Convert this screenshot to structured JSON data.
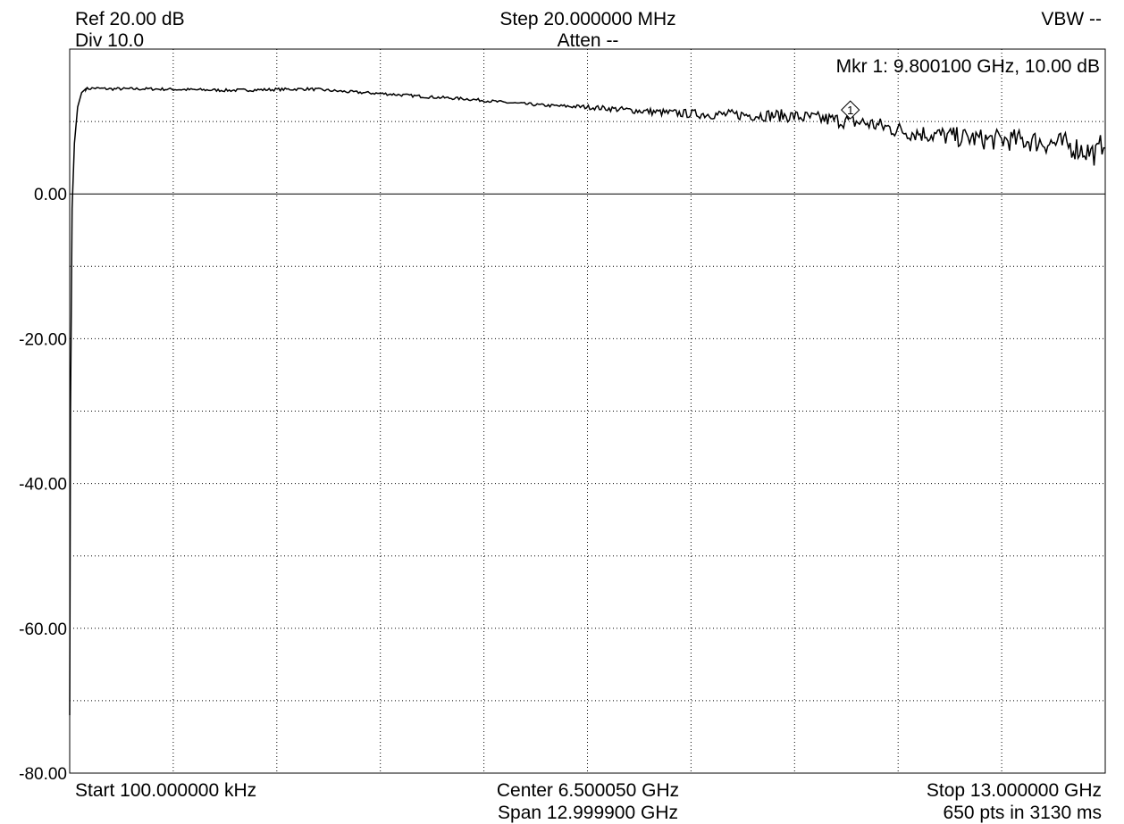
{
  "header": {
    "ref": "Ref 20.00 dB",
    "div": "Div 10.0",
    "step": "Step 20.000000 MHz",
    "atten": "Atten --",
    "vbw": "VBW --"
  },
  "marker": {
    "readout": "Mkr 1: 9.800100 GHz, 10.00 dB",
    "id": "1",
    "freq_ghz": 9.8001,
    "level_db": 10.0
  },
  "footer": {
    "start": "Start 100.000000 kHz",
    "center": "Center 6.500050 GHz",
    "span": "Span 12.999900 GHz",
    "stop": "Stop 13.000000 GHz",
    "points": "650 pts in 3130 ms"
  },
  "chart_data": {
    "type": "line",
    "xlim": [
      0.0001,
      13.0
    ],
    "ylim": [
      -80,
      20
    ],
    "x_divisions": 10,
    "y_divisions": 10,
    "grid": true,
    "y_tick_labels": [
      "0.00",
      "-20.00",
      "-40.00",
      "-60.00",
      "-80.00"
    ],
    "y_tick_values": [
      0,
      -20,
      -40,
      -60,
      -80
    ],
    "series": [
      {
        "x": [
          0.0001,
          0.01,
          0.03,
          0.06,
          0.1,
          0.15,
          0.2,
          0.3,
          0.5,
          1.0,
          1.5,
          2.0,
          2.5,
          3.0,
          3.5,
          4.0,
          4.5,
          5.0,
          5.5,
          6.0,
          6.5,
          7.0,
          7.5,
          8.0,
          8.5,
          9.0,
          9.5,
          9.8001,
          10.0,
          10.5,
          11.0,
          11.5,
          12.0,
          12.5,
          12.9,
          13.0
        ],
        "y": [
          -72,
          -30,
          -2,
          7,
          12,
          14,
          14.5,
          14.6,
          14.5,
          14.5,
          14.4,
          14.3,
          14.4,
          14.5,
          14.1,
          13.8,
          13.4,
          13.1,
          12.6,
          12.2,
          12.0,
          11.6,
          11.2,
          11.0,
          10.9,
          10.8,
          10.3,
          10.0,
          9.8,
          8.6,
          8.0,
          7.5,
          7.4,
          6.8,
          5.5,
          8.0
        ]
      }
    ]
  }
}
